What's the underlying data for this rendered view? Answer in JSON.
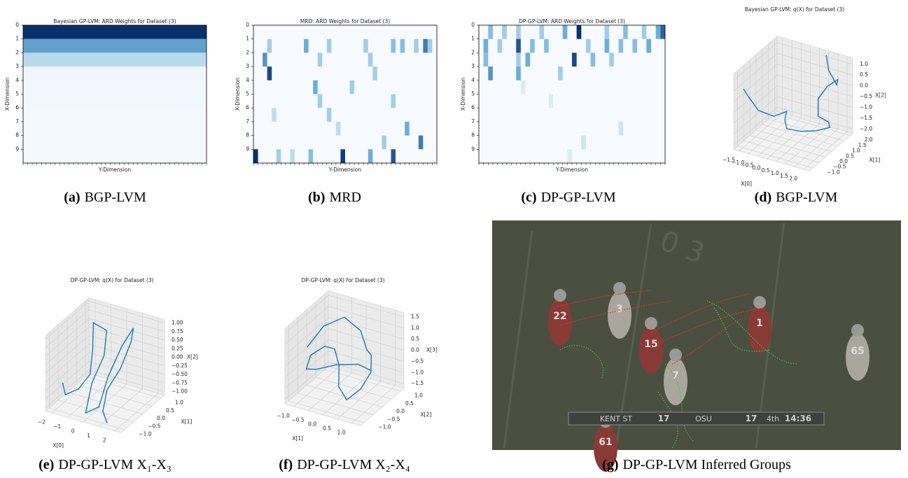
{
  "chart_data": [
    {
      "type": "heatmap",
      "title": "Bayesian GP-LVM: ARD Weights for Dataset (3)",
      "xlabel": "Y-Dimension",
      "ylabel": "X-Dimension",
      "ylim": [
        0,
        10
      ],
      "yticks": [
        0,
        1,
        2,
        3,
        4,
        5,
        6,
        7,
        8,
        9
      ],
      "color_range": [
        0,
        1
      ],
      "row_values": [
        1.0,
        0.55,
        0.22,
        0.03,
        0.02,
        0.02,
        0.01,
        0.01,
        0.01,
        0.01
      ],
      "caption_label": "(a)",
      "caption": "BGP-LVM"
    },
    {
      "type": "heatmap",
      "title": "MRD: ARD Weights for Dataset (3)",
      "xlabel": "Y-Dimension",
      "ylabel": "X-Dimension",
      "ylim": [
        0,
        10
      ],
      "yticks": [
        0,
        1,
        2,
        3,
        4,
        5,
        6,
        7,
        8,
        9
      ],
      "color_range": [
        0,
        1
      ],
      "cells": [
        [
          1,
          3,
          0.3
        ],
        [
          1,
          11,
          0.5
        ],
        [
          1,
          16,
          0.3
        ],
        [
          1,
          24,
          0.3
        ],
        [
          1,
          30,
          0.4
        ],
        [
          1,
          32,
          0.4
        ],
        [
          1,
          35,
          0.3
        ],
        [
          1,
          37,
          0.7
        ],
        [
          1,
          38,
          0.3
        ],
        [
          2,
          2,
          0.6
        ],
        [
          2,
          14,
          0.3
        ],
        [
          2,
          25,
          0.3
        ],
        [
          3,
          3,
          0.9
        ],
        [
          3,
          26,
          0.3
        ],
        [
          4,
          13,
          0.5
        ],
        [
          4,
          21,
          0.3
        ],
        [
          5,
          14,
          0.3
        ],
        [
          5,
          30,
          0.3
        ],
        [
          6,
          4,
          0.2
        ],
        [
          6,
          16,
          0.3
        ],
        [
          7,
          18,
          0.2
        ],
        [
          7,
          33,
          0.5
        ],
        [
          8,
          28,
          0.3
        ],
        [
          8,
          36,
          0.7
        ],
        [
          9,
          0,
          1.0
        ],
        [
          9,
          5,
          0.3
        ],
        [
          9,
          12,
          0.4
        ],
        [
          9,
          19,
          0.95
        ],
        [
          9,
          25,
          0.5
        ],
        [
          9,
          30,
          0.85
        ],
        [
          9,
          8,
          0.2
        ]
      ],
      "caption_label": "(b)",
      "caption": "MRD"
    },
    {
      "type": "heatmap",
      "title": "DP-GP-LVM: ARD Weights for Dataset (3)",
      "xlabel": "Y-Dimension",
      "ylabel": "X-Dimension",
      "ylim": [
        0,
        10
      ],
      "yticks": [
        0,
        1,
        2,
        3,
        4,
        5,
        6,
        7,
        8,
        9
      ],
      "color_range": [
        0,
        1
      ],
      "cells": [
        [
          0,
          2,
          0.4
        ],
        [
          0,
          5,
          0.3
        ],
        [
          0,
          8,
          0.3
        ],
        [
          0,
          13,
          0.3
        ],
        [
          0,
          18,
          0.5
        ],
        [
          0,
          21,
          1.0
        ],
        [
          0,
          27,
          0.3
        ],
        [
          0,
          31,
          0.4
        ],
        [
          0,
          35,
          0.3
        ],
        [
          0,
          38,
          0.5
        ],
        [
          0,
          39,
          0.8
        ],
        [
          1,
          1,
          0.5
        ],
        [
          1,
          4,
          0.3
        ],
        [
          1,
          8,
          0.85
        ],
        [
          1,
          11,
          0.4
        ],
        [
          1,
          14,
          0.4
        ],
        [
          1,
          23,
          0.3
        ],
        [
          1,
          27,
          0.5
        ],
        [
          1,
          30,
          0.4
        ],
        [
          1,
          33,
          0.4
        ],
        [
          1,
          36,
          0.5
        ],
        [
          2,
          1,
          0.4
        ],
        [
          2,
          8,
          0.3
        ],
        [
          2,
          10,
          0.5
        ],
        [
          2,
          20,
          0.9
        ],
        [
          2,
          24,
          0.4
        ],
        [
          2,
          28,
          0.3
        ],
        [
          3,
          2,
          0.6
        ],
        [
          3,
          8,
          0.5
        ],
        [
          3,
          17,
          0.3
        ],
        [
          4,
          9,
          0.1
        ],
        [
          5,
          15,
          0.1
        ],
        [
          7,
          30,
          0.15
        ],
        [
          8,
          22,
          0.15
        ],
        [
          9,
          19,
          0.1
        ]
      ],
      "caption_label": "(c)",
      "caption": "DP-GP-LVM"
    },
    {
      "type": "line3d",
      "title": "Bayesian GP-LVM: q(X) for Dataset (3)",
      "xlabel": "X[0]",
      "ylabel": "X[1]",
      "zlabel": "X[2]",
      "color": "#1f77b4",
      "xlim": [
        -1.8,
        2.3
      ],
      "ylim": [
        -1.3,
        2.2
      ],
      "zlim": [
        -2.2,
        1.3
      ],
      "xticks": [
        {
          "value": -1.5,
          "label": "−1.5"
        },
        {
          "value": -1.0,
          "label": "−1.0"
        },
        {
          "value": -0.5,
          "label": "−0.5"
        },
        {
          "value": 0.0,
          "label": "0.0"
        },
        0.5,
        {
          "value": 1.0,
          "label": "1.0"
        },
        1.5,
        {
          "value": 2.0,
          "label": "2.0"
        }
      ],
      "yticks": [
        {
          "value": -1.0,
          "label": "−1.0"
        },
        {
          "value": -0.5,
          "label": "−0.5"
        },
        {
          "value": 0.0,
          "label": "0.0"
        },
        0.5,
        {
          "value": 1.0,
          "label": "1.0"
        },
        1.5,
        {
          "value": 2.0,
          "label": "2.0"
        }
      ],
      "zticks": [
        {
          "value": -2.0,
          "label": "−2.0"
        },
        {
          "value": -1.5,
          "label": "−1.5"
        },
        {
          "value": -1.0,
          "label": "−1.0"
        },
        {
          "value": -0.5,
          "label": "−0.5"
        },
        {
          "value": 0.0,
          "label": "0.0"
        },
        0.5,
        {
          "value": 1.0,
          "label": "1.0"
        }
      ],
      "x": [
        -1.6,
        -1.5,
        -1.0,
        -0.3,
        0.2,
        -0.1,
        -0.2,
        0.3,
        1.0,
        1.6,
        1.8,
        1.5,
        1.3,
        1.6,
        1.9,
        1.7,
        1.2,
        1.0
      ],
      "y": [
        -0.8,
        -0.6,
        -0.5,
        -0.3,
        0.0,
        0.3,
        0.6,
        1.0,
        1.2,
        1.4,
        1.0,
        0.6,
        0.9,
        1.2,
        1.6,
        1.8,
        1.9,
        2.0
      ],
      "z": [
        0.4,
        0.0,
        -0.6,
        -0.8,
        -0.6,
        -1.2,
        -1.8,
        -2.0,
        -1.9,
        -1.7,
        -1.2,
        -0.8,
        -0.2,
        0.3,
        0.5,
        0.1,
        0.6,
        1.2
      ],
      "caption_label": "(d)",
      "caption": "BGP-LVM"
    },
    {
      "type": "line3d",
      "title": "DP-GP-LVM: q(X) for Dataset (3)",
      "xlabel": "X[0]",
      "ylabel": "X[1]",
      "zlabel": "X[2]",
      "color": "#1f77b4",
      "xlim": [
        -2.4,
        2.4
      ],
      "ylim": [
        -1.2,
        1.2
      ],
      "zlim": [
        -1.1,
        1.1
      ],
      "xticks": [
        {
          "value": -2,
          "label": "−2"
        },
        {
          "value": -1,
          "label": "−1"
        },
        0,
        1,
        2
      ],
      "yticks": [
        {
          "value": -1.0,
          "label": "−1.0"
        },
        {
          "value": -0.5,
          "label": "−0.5"
        },
        {
          "value": 0.0,
          "label": "0.0"
        },
        0.5,
        {
          "value": 1.0,
          "label": "1.0"
        }
      ],
      "zticks": [
        {
          "value": -1.0,
          "label": "−1.00"
        },
        {
          "value": -0.75,
          "label": "−0.75"
        },
        {
          "value": -0.5,
          "label": "−0.50"
        },
        {
          "value": -0.25,
          "label": "−0.25"
        },
        {
          "value": 0.0,
          "label": "0.00"
        },
        0.25,
        {
          "value": 0.5,
          "label": "0.50"
        },
        0.75,
        {
          "value": 1.0,
          "label": "1.00"
        }
      ],
      "x": [
        -2.0,
        -1.6,
        -1.1,
        -0.6,
        -0.9,
        -1.2,
        -0.7,
        -0.4,
        -0.6,
        -0.2,
        0.3,
        0.2,
        0.5,
        1.0,
        1.3,
        1.1,
        0.7,
        0.9,
        1.4
      ],
      "y": [
        -0.6,
        -0.8,
        -0.5,
        -0.3,
        0.1,
        0.4,
        0.7,
        0.3,
        -0.2,
        -0.9,
        -0.6,
        0.0,
        0.5,
        0.7,
        0.3,
        -0.1,
        -0.5,
        -0.9,
        -1.1
      ],
      "z": [
        -0.5,
        -0.7,
        -0.6,
        -0.2,
        0.3,
        0.9,
        0.6,
        0.1,
        -0.5,
        -1.0,
        -0.9,
        -0.3,
        0.4,
        0.9,
        0.7,
        0.1,
        -0.4,
        -0.8,
        -1.0
      ],
      "caption_label": "(e)",
      "caption": "DP-GP-LVM X₁-X₃"
    },
    {
      "type": "line3d",
      "title": "DP-GP-LVM: q(X) for Dataset (3)",
      "xlabel": "X[1]",
      "ylabel": "X[2]",
      "zlabel": "X[3]",
      "color": "#1f77b4",
      "xlim": [
        -1.3,
        1.3
      ],
      "ylim": [
        -1.2,
        1.2
      ],
      "zlim": [
        -1.7,
        1.7
      ],
      "xticks": [
        {
          "value": -1.0,
          "label": "−1.0"
        },
        {
          "value": -0.5,
          "label": "−0.5"
        },
        {
          "value": 0.0,
          "label": "0.0"
        },
        0.5,
        {
          "value": 1.0,
          "label": "1.0"
        }
      ],
      "yticks": [
        {
          "value": -1.0,
          "label": "−1.0"
        },
        {
          "value": -0.5,
          "label": "−0.5"
        },
        {
          "value": 0.0,
          "label": "0.0"
        },
        0.5,
        {
          "value": 1.0,
          "label": "1.0"
        }
      ],
      "zticks": [
        {
          "value": -1.5,
          "label": "−1.5"
        },
        {
          "value": -1.0,
          "label": "−1.0"
        },
        {
          "value": -0.5,
          "label": "−0.5"
        },
        {
          "value": 0.0,
          "label": "0.0"
        },
        0.5,
        {
          "value": 1.0,
          "label": "1.0"
        },
        1.5
      ],
      "x": [
        -1.1,
        -0.9,
        -0.5,
        0.0,
        0.4,
        0.8,
        1.1,
        1.0,
        0.7,
        0.3,
        0.0,
        -0.4,
        -0.8,
        -1.1,
        -1.0,
        -0.6,
        0.0,
        0.6,
        0.9
      ],
      "y": [
        -0.3,
        0.3,
        0.8,
        0.9,
        0.6,
        0.2,
        -0.3,
        -0.7,
        -1.0,
        -0.8,
        -0.3,
        0.1,
        0.2,
        -0.1,
        -0.5,
        -0.6,
        -0.4,
        -0.2,
        0.0
      ],
      "z": [
        0.3,
        0.9,
        1.1,
        0.6,
        0.1,
        0.3,
        0.0,
        -0.5,
        -0.9,
        -0.6,
        -0.1,
        0.2,
        0.1,
        -0.2,
        -0.5,
        -0.3,
        0.0,
        0.1,
        -0.2
      ],
      "caption_label": "(f)",
      "caption": "DP-GP-LVM X₂-X₄"
    }
  ],
  "photo": {
    "caption_label": "(g)",
    "caption": "DP-GP-LVM Inferred Groups",
    "scoreboard": [
      "KENT ST",
      "17",
      "OSU",
      "17",
      "4th",
      "14:36"
    ],
    "jersey_numbers": [
      "22",
      "3",
      "15",
      "7",
      "1",
      "65",
      "61"
    ]
  }
}
